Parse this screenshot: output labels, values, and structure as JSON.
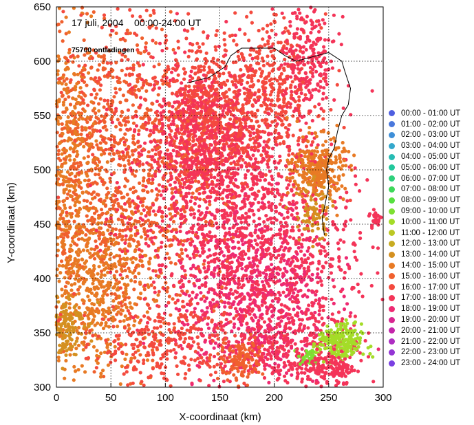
{
  "chart_data": {
    "type": "scatter",
    "title": "17 juli, 2004    00:00-24:00 UT",
    "subtitle": "75700 ontladingen",
    "xlabel": "X-coordinaat (km)",
    "ylabel": "Y-coordinaat (km)",
    "xlim": [
      0,
      300
    ],
    "ylim": [
      300,
      650
    ],
    "xticks": [
      0,
      50,
      100,
      150,
      200,
      250,
      300
    ],
    "yticks": [
      300,
      350,
      400,
      450,
      500,
      550,
      600,
      650
    ],
    "grid": true,
    "legend_position": "right",
    "series": [
      {
        "name": "00:00 - 01:00 UT",
        "color": "#4f5fe0"
      },
      {
        "name": "01:00 - 02:00 UT",
        "color": "#4a78dc"
      },
      {
        "name": "02:00 - 03:00 UT",
        "color": "#3f8fd8"
      },
      {
        "name": "03:00 - 04:00 UT",
        "color": "#34a8cc"
      },
      {
        "name": "04:00 - 05:00 UT",
        "color": "#27bcb4"
      },
      {
        "name": "05:00 - 06:00 UT",
        "color": "#22c89c"
      },
      {
        "name": "06:00 - 07:00 UT",
        "color": "#2ed07c"
      },
      {
        "name": "07:00 - 08:00 UT",
        "color": "#3ed85a"
      },
      {
        "name": "08:00 - 09:00 UT",
        "color": "#58e040"
      },
      {
        "name": "09:00 - 10:00 UT",
        "color": "#7ee032"
      },
      {
        "name": "10:00 - 11:00 UT",
        "color": "#a4dc28"
      },
      {
        "name": "11:00 - 12:00 UT",
        "color": "#bcc824"
      },
      {
        "name": "12:00 - 13:00 UT",
        "color": "#c8ac22"
      },
      {
        "name": "13:00 - 14:00 UT",
        "color": "#d49020"
      },
      {
        "name": "14:00 - 15:00 UT",
        "color": "#e87a24"
      },
      {
        "name": "15:00 - 16:00 UT",
        "color": "#f0602e"
      },
      {
        "name": "16:00 - 17:00 UT",
        "color": "#f44a3e"
      },
      {
        "name": "17:00 - 18:00 UT",
        "color": "#f43458"
      },
      {
        "name": "18:00 - 19:00 UT",
        "color": "#ee2a72"
      },
      {
        "name": "19:00 - 20:00 UT",
        "color": "#d82690"
      },
      {
        "name": "20:00 - 21:00 UT",
        "color": "#c426aa"
      },
      {
        "name": "21:00 - 22:00 UT",
        "color": "#ae2ec2"
      },
      {
        "name": "22:00 - 23:00 UT",
        "color": "#9436d4"
      },
      {
        "name": "23:00 - 24:00 UT",
        "color": "#7a40e2"
      }
    ],
    "clusters": [
      {
        "series": 16,
        "x": 140,
        "y": 540,
        "sx": 24,
        "sy": 36,
        "n": 700
      },
      {
        "series": 17,
        "x": 130,
        "y": 520,
        "sx": 30,
        "sy": 40,
        "n": 650
      },
      {
        "series": 17,
        "x": 190,
        "y": 430,
        "sx": 40,
        "sy": 60,
        "n": 800
      },
      {
        "series": 18,
        "x": 180,
        "y": 380,
        "sx": 35,
        "sy": 45,
        "n": 600
      },
      {
        "series": 16,
        "x": 200,
        "y": 570,
        "sx": 20,
        "sy": 35,
        "n": 350
      },
      {
        "series": 17,
        "x": 230,
        "y": 600,
        "sx": 14,
        "sy": 30,
        "n": 250
      },
      {
        "series": 15,
        "x": 60,
        "y": 450,
        "sx": 40,
        "sy": 50,
        "n": 600
      },
      {
        "series": 14,
        "x": 30,
        "y": 390,
        "sx": 30,
        "sy": 40,
        "n": 600
      },
      {
        "series": 15,
        "x": 40,
        "y": 540,
        "sx": 35,
        "sy": 50,
        "n": 500
      },
      {
        "series": 14,
        "x": 10,
        "y": 520,
        "sx": 15,
        "sy": 50,
        "n": 300
      },
      {
        "series": 13,
        "x": 5,
        "y": 360,
        "sx": 10,
        "sy": 15,
        "n": 150
      },
      {
        "series": 14,
        "x": 240,
        "y": 500,
        "sx": 12,
        "sy": 15,
        "n": 300
      },
      {
        "series": 13,
        "x": 235,
        "y": 460,
        "sx": 8,
        "sy": 15,
        "n": 80
      },
      {
        "series": 16,
        "x": 100,
        "y": 340,
        "sx": 40,
        "sy": 20,
        "n": 300
      },
      {
        "series": 17,
        "x": 220,
        "y": 340,
        "sx": 30,
        "sy": 20,
        "n": 300
      },
      {
        "series": 15,
        "x": 170,
        "y": 325,
        "sx": 10,
        "sy": 10,
        "n": 120
      },
      {
        "series": 10,
        "x": 260,
        "y": 340,
        "sx": 10,
        "sy": 9,
        "n": 200
      },
      {
        "series": 9,
        "x": 232,
        "y": 327,
        "sx": 5,
        "sy": 4,
        "n": 40
      },
      {
        "series": 17,
        "x": 250,
        "y": 318,
        "sx": 12,
        "sy": 8,
        "n": 120
      },
      {
        "series": 17,
        "x": 293,
        "y": 455,
        "sx": 3,
        "sy": 5,
        "n": 25
      },
      {
        "series": 16,
        "x": 100,
        "y": 580,
        "sx": 60,
        "sy": 50,
        "n": 300
      },
      {
        "series": 17,
        "x": 150,
        "y": 450,
        "sx": 50,
        "sy": 50,
        "n": 500
      }
    ]
  }
}
